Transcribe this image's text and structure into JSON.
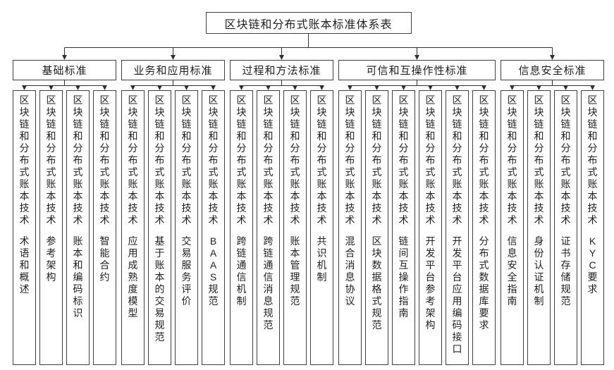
{
  "title": "区块链和分布式账本标准体系表",
  "common_label": "区块链和分布式账本技术",
  "groups": [
    {
      "label": "基础标准",
      "children": [
        "术语和概述",
        "参考架构",
        "账本和编码标识",
        "智能合约"
      ]
    },
    {
      "label": "业务和应用标准",
      "children": [
        "应用成熟度模型",
        "基于账本的交易规范",
        "交易服务评价",
        "BAAS规范"
      ]
    },
    {
      "label": "过程和方法标准",
      "children": [
        "跨链通信机制",
        "跨链通信消息规范",
        "账本管理规范",
        "共识机制"
      ]
    },
    {
      "label": "可信和互操作性标准",
      "children": [
        "混合消息协议",
        "区块数据格式规范",
        "链间互操作指南",
        "开发平台参考架构",
        "开发平台应用编码接口",
        "分布式数据库要求"
      ]
    },
    {
      "label": "信息安全标准",
      "children": [
        "信息安全指南",
        "身份认证机制",
        "证书存储规范",
        "KYC要求"
      ]
    }
  ],
  "colors": {
    "background": "#ffffff",
    "box_border": "#404040",
    "connector": "#303030",
    "text": "#1f1f1f"
  }
}
